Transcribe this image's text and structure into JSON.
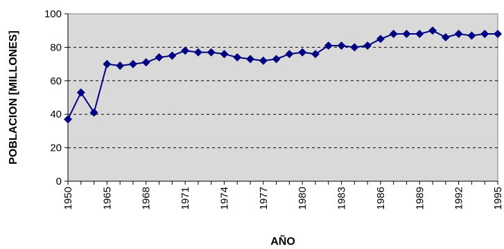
{
  "chart_data": {
    "type": "line",
    "title": "",
    "xlabel": "AÑO",
    "ylabel": "POBLACION [MILLONES]",
    "ylim": [
      0,
      100
    ],
    "y_ticks": [
      0,
      20,
      40,
      60,
      80,
      100
    ],
    "x_tick_labels": [
      "1950",
      "1965",
      "1968",
      "1971",
      "1974",
      "1977",
      "1980",
      "1983",
      "1986",
      "1989",
      "1992",
      "1995"
    ],
    "grid": "horizontal dashed",
    "plot_background": "#d9d9d9",
    "line_color": "#000080",
    "marker": "diamond",
    "series": [
      {
        "points": [
          {
            "x": "1950",
            "y": 37
          },
          {
            "x": "1955",
            "y": 53
          },
          {
            "x": "1960",
            "y": 41
          },
          {
            "x": "1965",
            "y": 70
          },
          {
            "x": "1966",
            "y": 69
          },
          {
            "x": "1967",
            "y": 70
          },
          {
            "x": "1968",
            "y": 71
          },
          {
            "x": "1969",
            "y": 74
          },
          {
            "x": "1970",
            "y": 75
          },
          {
            "x": "1971",
            "y": 78
          },
          {
            "x": "1972",
            "y": 77
          },
          {
            "x": "1973",
            "y": 77
          },
          {
            "x": "1974",
            "y": 76
          },
          {
            "x": "1975",
            "y": 74
          },
          {
            "x": "1976",
            "y": 73
          },
          {
            "x": "1977",
            "y": 72
          },
          {
            "x": "1978",
            "y": 73
          },
          {
            "x": "1979",
            "y": 76
          },
          {
            "x": "1980",
            "y": 77
          },
          {
            "x": "1981",
            "y": 76
          },
          {
            "x": "1982",
            "y": 81
          },
          {
            "x": "1983",
            "y": 81
          },
          {
            "x": "1984",
            "y": 80
          },
          {
            "x": "1985",
            "y": 81
          },
          {
            "x": "1986",
            "y": 85
          },
          {
            "x": "1987",
            "y": 88
          },
          {
            "x": "1988",
            "y": 88
          },
          {
            "x": "1989",
            "y": 88
          },
          {
            "x": "1990",
            "y": 90
          },
          {
            "x": "1991",
            "y": 86
          },
          {
            "x": "1992",
            "y": 88
          },
          {
            "x": "1993",
            "y": 87
          },
          {
            "x": "1994",
            "y": 88
          },
          {
            "x": "1995",
            "y": 88
          }
        ]
      }
    ]
  }
}
